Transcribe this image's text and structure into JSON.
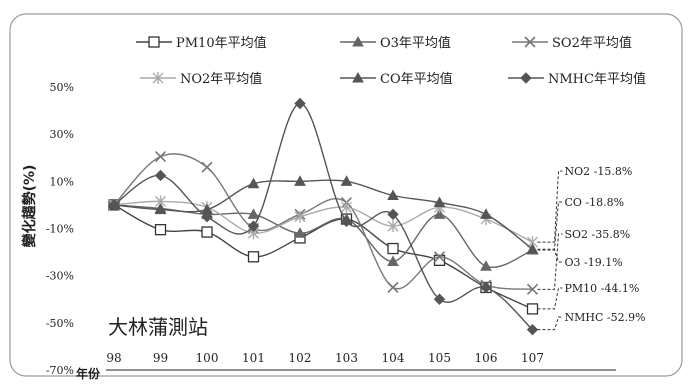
{
  "chart_data": {
    "type": "line",
    "station": "大林蒲測站",
    "ylabel": "變化趨勢(%)",
    "xlabel": "年份",
    "categories": [
      "98",
      "99",
      "100",
      "101",
      "102",
      "103",
      "104",
      "105",
      "106",
      "107"
    ],
    "y_ticks": [
      "50%",
      "30%",
      "10%",
      "-10%",
      "-30%",
      "-50%",
      "-70%"
    ],
    "ylim": [
      -70,
      50
    ],
    "grid": false,
    "legend_position": "top",
    "series": [
      {
        "name": "PM10年平均值",
        "marker": "square-open",
        "color": "#444444",
        "values": [
          0,
          -10.5,
          -11.5,
          -22,
          -14,
          -6,
          -18.5,
          -23.5,
          -35,
          -44.1
        ],
        "end_label": "PM10 -44.1%"
      },
      {
        "name": "O3年平均值",
        "marker": "triangle",
        "color": "#666666",
        "values": [
          0,
          -1.5,
          -4,
          -4,
          -12,
          -6,
          -24,
          -4,
          -26,
          -19.1
        ],
        "end_label": "O3 -19.1%"
      },
      {
        "name": "SO2年平均值",
        "marker": "x",
        "color": "#777777",
        "values": [
          0,
          20.5,
          16,
          -10,
          -4,
          1,
          -35,
          -22,
          -34,
          -35.8
        ],
        "end_label": "SO2 -35.8%"
      },
      {
        "name": "NO2年平均值",
        "marker": "star",
        "color": "#aaaaaa",
        "values": [
          0,
          1.5,
          -1,
          -12,
          -5,
          -1,
          -9,
          -1,
          -6,
          -15.8
        ],
        "end_label": "NO2 -15.8%"
      },
      {
        "name": "CO年平均值",
        "marker": "triangle",
        "color": "#555555",
        "values": [
          0,
          -2,
          -2,
          9,
          10,
          10,
          4,
          1,
          -4,
          -18.8
        ],
        "end_label": "CO -18.8%"
      },
      {
        "name": "NMHC年平均值",
        "marker": "diamond",
        "color": "#555555",
        "values": [
          0,
          12.5,
          -5,
          -9,
          43,
          -7,
          -4,
          -40,
          -35,
          -52.9
        ],
        "end_label": "NMHC -52.9%"
      }
    ]
  }
}
